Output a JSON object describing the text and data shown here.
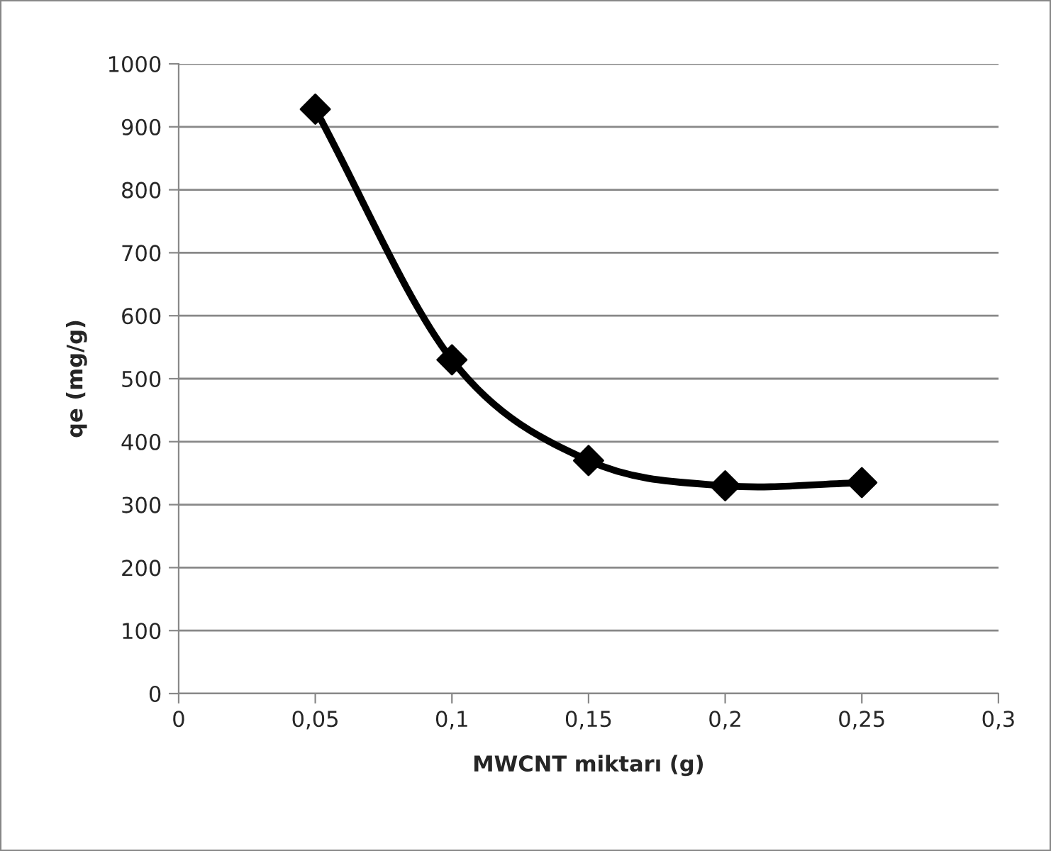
{
  "chart_data": {
    "type": "line",
    "xlabel": "MWCNT miktarı (g)",
    "ylabel": "qe (mg/g)",
    "x": [
      0.05,
      0.1,
      0.15,
      0.2,
      0.25
    ],
    "series": [
      {
        "color": "#000000",
        "values": [
          928,
          530,
          370,
          330,
          335
        ]
      }
    ],
    "xlim": [
      0,
      0.3
    ],
    "xticks": [
      0,
      {
        "value": 0.05,
        "label": "0,05"
      },
      {
        "value": 0.1,
        "label": "0,1"
      },
      {
        "value": 0.15,
        "label": "0,15"
      },
      {
        "value": 0.2,
        "label": "0,2"
      },
      {
        "value": 0.25,
        "label": "0,25"
      },
      {
        "value": 0.3,
        "label": "0,3"
      }
    ],
    "ylim": [
      0,
      1000
    ],
    "yticks": [
      0,
      100,
      200,
      300,
      400,
      500,
      600,
      700,
      800,
      900,
      1000
    ],
    "grid": "y",
    "marker": "diamond",
    "line_style": "solid",
    "legend": false
  }
}
